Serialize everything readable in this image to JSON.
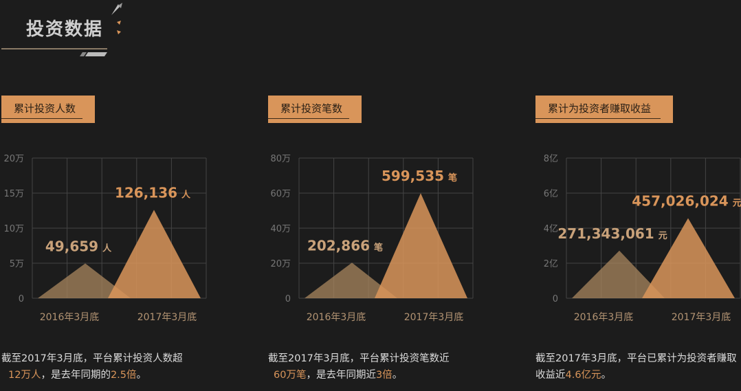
{
  "header": {
    "title": "投资数据"
  },
  "colors": {
    "accent": "#d9955a",
    "accent_dark": "#a8865e",
    "grid": "#444444",
    "axis_text": "#777777"
  },
  "panels": [
    {
      "tag": "累计投资人数",
      "desc_pre": "截至2017年3月底，平台累计投资人数超",
      "desc_hl1": "12万人",
      "desc_mid": "，是去年同期的",
      "desc_hl2": "2.5倍",
      "desc_post": "。"
    },
    {
      "tag": "累计投资笔数",
      "desc_pre": "截至2017年3月底，平台累计投资笔数近",
      "desc_hl1": "60万笔",
      "desc_mid": "，是去年同期近",
      "desc_hl2": "3倍",
      "desc_post": "。"
    },
    {
      "tag": "累计为投资者赚取收益",
      "desc_pre": "截至2017年3月底，平台已累计为投资者赚取收益近",
      "desc_hl1": "4.6亿元",
      "desc_mid": "",
      "desc_hl2": "",
      "desc_post": "。"
    }
  ],
  "chart_data": [
    {
      "type": "area",
      "categories": [
        "2016年3月底",
        "2017年3月底"
      ],
      "values": [
        49659,
        126136
      ],
      "labels": [
        "49,659",
        "126,136"
      ],
      "unit": "人",
      "yticks": [
        "0",
        "5万",
        "10万",
        "15万",
        "20万"
      ],
      "ylim": [
        0,
        200000
      ],
      "grid": true
    },
    {
      "type": "area",
      "categories": [
        "2016年3月底",
        "2017年3月底"
      ],
      "values": [
        202866,
        599535
      ],
      "labels": [
        "202,866",
        "599,535"
      ],
      "unit": "笔",
      "yticks": [
        "0",
        "20万",
        "40万",
        "60万",
        "80万"
      ],
      "ylim": [
        0,
        800000
      ],
      "grid": true
    },
    {
      "type": "area",
      "categories": [
        "2016年3月底",
        "2017年3月底"
      ],
      "values": [
        271343061,
        457026024
      ],
      "labels": [
        "271,343,061",
        "457,026,024"
      ],
      "unit": "元",
      "yticks": [
        "0",
        "2亿",
        "4亿",
        "6亿",
        "8亿"
      ],
      "ylim": [
        0,
        800000000
      ],
      "grid": true
    }
  ]
}
